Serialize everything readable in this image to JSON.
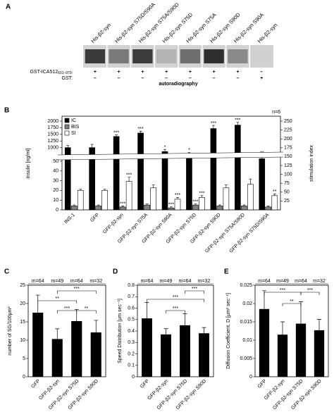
{
  "panel_a": {
    "letter": "A",
    "lanes": [
      "His-β2-syn",
      "His-β2-syn S75D/S90A",
      "His-β2-syn S75A/S90D",
      "His-β2-syn S75D",
      "His-β2-syn S75A",
      "His-β2-syn S90D",
      "His-β2-syn S90A",
      "His-β2-syn"
    ],
    "rows": [
      {
        "label": "GST-ICA512",
        "label_sub": "601–979:",
        "signs": [
          "+",
          "+",
          "+",
          "+",
          "+",
          "+",
          "+",
          "–"
        ]
      },
      {
        "label": "GST:",
        "signs": [
          "–",
          "–",
          "–",
          "–",
          "–",
          "–",
          "–",
          "+"
        ]
      }
    ],
    "caption": "autoradiography"
  },
  "chart_data": [
    {
      "type": "bar",
      "letter": "B",
      "annotation": "n=6",
      "ylabel": "Insulin [ng/ml]",
      "y2label": "stimulation index",
      "categories": [
        "INS-1",
        "GFP",
        "GFP-β2-syn",
        "GFP-β2-syn S75A",
        "GFP-β2-syn S90A",
        "GFP-β2-syn S75D",
        "GFP-β2-syn S90D",
        "GFP-β2-syn S75A/S90D",
        "GFP-β2-syn S75D/S90A"
      ],
      "ylim": [
        750,
        2000
      ],
      "yticks": [
        1000,
        1250,
        1500,
        1750,
        2000
      ],
      "ylim_lower": [
        0,
        50
      ],
      "yticks_lower": [
        0,
        10,
        20,
        30,
        40,
        50
      ],
      "y2lim": [
        0,
        250
      ],
      "y2ticks": [
        25,
        50,
        75,
        100,
        125,
        150,
        175,
        200,
        225,
        250
      ],
      "axis_break": true,
      "legend": "upper left",
      "series": [
        {
          "name": "IC",
          "color": "#000000",
          "values": [
            1000,
            1000,
            1420,
            1550,
            850,
            720,
            1720,
            1850,
            580
          ],
          "errors": [
            80,
            120,
            60,
            70,
            80,
            100,
            120,
            110,
            120
          ],
          "significance": [
            null,
            null,
            "***",
            "***",
            "*",
            "*",
            "***",
            "***",
            "**"
          ]
        },
        {
          "name": "BIS",
          "color": "#808080",
          "axis": "y_lower",
          "values": [
            4,
            4,
            3,
            5,
            2,
            5,
            4,
            4,
            3
          ],
          "errors": [
            1,
            1,
            1,
            1,
            1,
            1,
            1,
            1,
            1
          ],
          "significance": [
            null,
            null,
            "***",
            null,
            "***",
            "***",
            null,
            null,
            null
          ]
        },
        {
          "name": "SI",
          "color": "#ffffff",
          "axis": "y2",
          "values": [
            55,
            55,
            80,
            62,
            30,
            35,
            62,
            72,
            40
          ],
          "errors": [
            3,
            3,
            12,
            8,
            5,
            5,
            8,
            15,
            5
          ],
          "significance": [
            null,
            null,
            "***",
            null,
            "***",
            "***",
            null,
            null,
            "**"
          ]
        }
      ]
    },
    {
      "type": "bar",
      "letter": "C",
      "ylabel": "number of SG/100μm²",
      "categories": [
        "GFP",
        "GFP-β2-syn",
        "GFP-β2-syn S75D",
        "GFP-β2-syn S90D"
      ],
      "values": [
        17.5,
        10.3,
        15.2,
        12.1
      ],
      "errors": [
        4.8,
        2.8,
        3.2,
        3.3
      ],
      "color": "#000000",
      "n_labels": [
        "m=64",
        "m=49",
        "m=64",
        "m=32"
      ],
      "ylim": [
        0,
        25
      ],
      "yticks": [
        0,
        5,
        10,
        15,
        20,
        25
      ],
      "brackets": [
        "**",
        "***",
        "**",
        "***"
      ]
    },
    {
      "type": "bar",
      "letter": "D",
      "ylabel": "Speed Distribution [μm sec⁻¹]",
      "categories": [
        "GFP",
        "GFP-β2-syn",
        "GFP-β2-syn S75D",
        "GFP-β2-syn S90D"
      ],
      "values": [
        0.51,
        0.37,
        0.45,
        0.38
      ],
      "errors": [
        0.14,
        0.05,
        0.1,
        0.05
      ],
      "color": "#000000",
      "n_labels": [
        "m=64",
        "m=49",
        "m=64",
        "m=32"
      ],
      "ylim": [
        0,
        0.8
      ],
      "yticks": [
        0,
        0.1,
        0.2,
        0.3,
        0.4,
        0.5,
        0.6,
        0.7,
        0.8
      ],
      "brackets": [
        "***",
        "***",
        "***"
      ]
    },
    {
      "type": "bar",
      "letter": "E",
      "ylabel": "Diffusion Coefficient, D [μm² sec⁻¹]",
      "categories": [
        "GFP",
        "GFP-β2-syn",
        "GFP-β2-syn S75D",
        "GFP-β2-syn S90D"
      ],
      "values": [
        0.0185,
        0.0115,
        0.0145,
        0.0127
      ],
      "errors": [
        0.005,
        0.0035,
        0.006,
        0.003
      ],
      "color": "#000000",
      "n_labels": [
        "m=64",
        "m=49",
        "m=64",
        "m=32"
      ],
      "ylim": [
        0,
        0.025
      ],
      "yticks": [
        0,
        0.005,
        0.01,
        0.015,
        0.02,
        0.025
      ],
      "brackets": [
        "***",
        "**",
        "***"
      ]
    }
  ]
}
